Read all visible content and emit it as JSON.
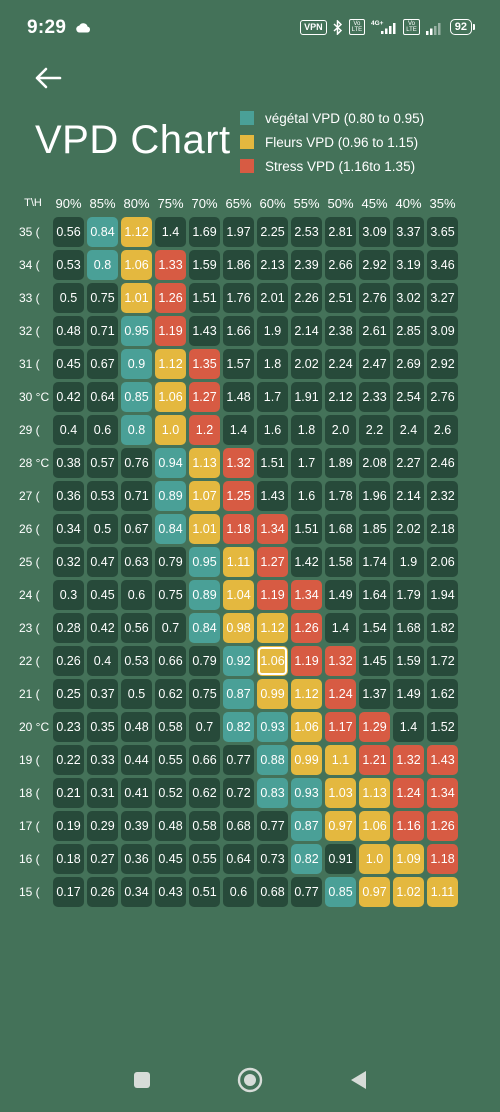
{
  "status_bar": {
    "time": "9:29",
    "vpn": "VPN",
    "battery": "92"
  },
  "title": "VPD Chart",
  "legend": [
    {
      "label": "végétal VPD (0.80 to 0.95)",
      "color": "#4aa097"
    },
    {
      "label": "Fleurs VPD (0.96 to 1.15)",
      "color": "#e4b83f"
    },
    {
      "label": "Stress VPD (1.16to 1.35)",
      "color": "#d75b43"
    }
  ],
  "colors": {
    "background": "#447259",
    "cell": "#274a3a"
  },
  "table": {
    "corner": "T\\H",
    "headers": [
      "90%",
      "85%",
      "80%",
      "75%",
      "70%",
      "65%",
      "60%",
      "55%",
      "50%",
      "45%",
      "40%",
      "35%"
    ],
    "rows": [
      {
        "temp": "35 (",
        "values": [
          "0.56",
          "0.84",
          "1.12",
          "1.4",
          "1.69",
          "1.97",
          "2.25",
          "2.53",
          "2.81",
          "3.09",
          "3.37",
          "3.65"
        ]
      },
      {
        "temp": "34 (",
        "values": [
          "0.53",
          "0.8",
          "1.06",
          "1.33",
          "1.59",
          "1.86",
          "2.13",
          "2.39",
          "2.66",
          "2.92",
          "3.19",
          "3.46"
        ]
      },
      {
        "temp": "33 (",
        "values": [
          "0.5",
          "0.75",
          "1.01",
          "1.26",
          "1.51",
          "1.76",
          "2.01",
          "2.26",
          "2.51",
          "2.76",
          "3.02",
          "3.27"
        ]
      },
      {
        "temp": "32 (",
        "values": [
          "0.48",
          "0.71",
          "0.95",
          "1.19",
          "1.43",
          "1.66",
          "1.9",
          "2.14",
          "2.38",
          "2.61",
          "2.85",
          "3.09"
        ]
      },
      {
        "temp": "31 (",
        "values": [
          "0.45",
          "0.67",
          "0.9",
          "1.12",
          "1.35",
          "1.57",
          "1.8",
          "2.02",
          "2.24",
          "2.47",
          "2.69",
          "2.92"
        ]
      },
      {
        "temp": "30 °C",
        "values": [
          "0.42",
          "0.64",
          "0.85",
          "1.06",
          "1.27",
          "1.48",
          "1.7",
          "1.91",
          "2.12",
          "2.33",
          "2.54",
          "2.76"
        ]
      },
      {
        "temp": "29 (",
        "values": [
          "0.4",
          "0.6",
          "0.8",
          "1.0",
          "1.2",
          "1.4",
          "1.6",
          "1.8",
          "2.0",
          "2.2",
          "2.4",
          "2.6"
        ]
      },
      {
        "temp": "28 °C",
        "values": [
          "0.38",
          "0.57",
          "0.76",
          "0.94",
          "1.13",
          "1.32",
          "1.51",
          "1.7",
          "1.89",
          "2.08",
          "2.27",
          "2.46"
        ]
      },
      {
        "temp": "27 (",
        "values": [
          "0.36",
          "0.53",
          "0.71",
          "0.89",
          "1.07",
          "1.25",
          "1.43",
          "1.6",
          "1.78",
          "1.96",
          "2.14",
          "2.32"
        ]
      },
      {
        "temp": "26 (",
        "values": [
          "0.34",
          "0.5",
          "0.67",
          "0.84",
          "1.01",
          "1.18",
          "1.34",
          "1.51",
          "1.68",
          "1.85",
          "2.02",
          "2.18"
        ]
      },
      {
        "temp": "25 (",
        "values": [
          "0.32",
          "0.47",
          "0.63",
          "0.79",
          "0.95",
          "1.11",
          "1.27",
          "1.42",
          "1.58",
          "1.74",
          "1.9",
          "2.06"
        ]
      },
      {
        "temp": "24 (",
        "values": [
          "0.3",
          "0.45",
          "0.6",
          "0.75",
          "0.89",
          "1.04",
          "1.19",
          "1.34",
          "1.49",
          "1.64",
          "1.79",
          "1.94"
        ]
      },
      {
        "temp": "23 (",
        "values": [
          "0.28",
          "0.42",
          "0.56",
          "0.7",
          "0.84",
          "0.98",
          "1.12",
          "1.26",
          "1.4",
          "1.54",
          "1.68",
          "1.82"
        ]
      },
      {
        "temp": "22 (",
        "values": [
          "0.26",
          "0.4",
          "0.53",
          "0.66",
          "0.79",
          "0.92",
          "1.06",
          "1.19",
          "1.32",
          "1.45",
          "1.59",
          "1.72"
        ]
      },
      {
        "temp": "21 (",
        "values": [
          "0.25",
          "0.37",
          "0.5",
          "0.62",
          "0.75",
          "0.87",
          "0.99",
          "1.12",
          "1.24",
          "1.37",
          "1.49",
          "1.62"
        ]
      },
      {
        "temp": "20 °C",
        "values": [
          "0.23",
          "0.35",
          "0.48",
          "0.58",
          "0.7",
          "0.82",
          "0.93",
          "1.06",
          "1.17",
          "1.29",
          "1.4",
          "1.52"
        ]
      },
      {
        "temp": "19 (",
        "values": [
          "0.22",
          "0.33",
          "0.44",
          "0.55",
          "0.66",
          "0.77",
          "0.88",
          "0.99",
          "1.1",
          "1.21",
          "1.32",
          "1.43"
        ]
      },
      {
        "temp": "18 (",
        "values": [
          "0.21",
          "0.31",
          "0.41",
          "0.52",
          "0.62",
          "0.72",
          "0.83",
          "0.93",
          "1.03",
          "1.13",
          "1.24",
          "1.34"
        ]
      },
      {
        "temp": "17 (",
        "values": [
          "0.19",
          "0.29",
          "0.39",
          "0.48",
          "0.58",
          "0.68",
          "0.77",
          "0.87",
          "0.97",
          "1.06",
          "1.16",
          "1.26"
        ]
      },
      {
        "temp": "16 (",
        "values": [
          "0.18",
          "0.27",
          "0.36",
          "0.45",
          "0.55",
          "0.64",
          "0.73",
          "0.82",
          "0.91",
          "1.0",
          "1.09",
          "1.18"
        ]
      },
      {
        "temp": "15 (",
        "values": [
          "0.17",
          "0.26",
          "0.34",
          "0.43",
          "0.51",
          "0.6",
          "0.68",
          "0.77",
          "0.85",
          "0.97",
          "1.02",
          "1.11"
        ]
      }
    ]
  },
  "icons": {
    "back": "back-arrow-icon",
    "cloud": "cloud-icon",
    "nav_recent": "square-icon",
    "nav_home": "circle-icon",
    "nav_back": "triangle-back-icon"
  }
}
